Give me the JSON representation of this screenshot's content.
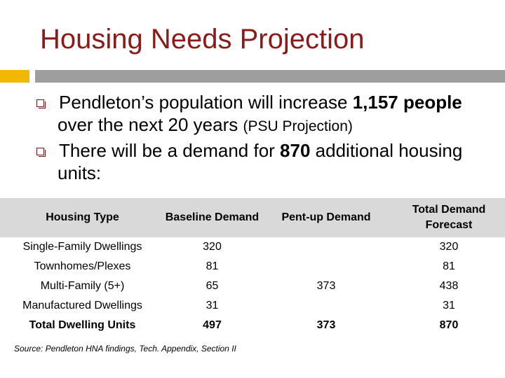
{
  "slide": {
    "title": "Housing Needs Projection",
    "colors": {
      "title": "#8B1A1A",
      "accent": "#F2B705",
      "rule": "#9E9E9E",
      "header_fill": "#D9D9D9"
    }
  },
  "bullets": [
    {
      "icon": "square-bullet-icon",
      "parts": [
        {
          "text": "Pendleton’s population will increase ",
          "bold": false
        },
        {
          "text": "1,157 people",
          "bold": true
        },
        {
          "text": " over the next 20 years ",
          "bold": false
        },
        {
          "text": "(PSU Projection)",
          "bold": false,
          "small": true
        }
      ]
    },
    {
      "icon": "square-bullet-icon",
      "parts": [
        {
          "text": "There will be a demand for ",
          "bold": false
        },
        {
          "text": "870",
          "bold": true
        },
        {
          "text": " additional housing units:",
          "bold": false
        }
      ]
    }
  ],
  "table": {
    "headers": [
      "Housing Type",
      "Baseline Demand",
      "Pent-up Demand",
      "Total Demand Forecast"
    ],
    "rows": [
      {
        "type": "Single-Family Dwellings",
        "baseline": "320",
        "pentup": "",
        "total": "320"
      },
      {
        "type": "Townhomes/Plexes",
        "baseline": "81",
        "pentup": "",
        "total": "81"
      },
      {
        "type": "Multi-Family (5+)",
        "baseline": "65",
        "pentup": "373",
        "total": "438"
      },
      {
        "type": "Manufactured Dwellings",
        "baseline": "31",
        "pentup": "",
        "total": "31"
      }
    ],
    "total_row": {
      "type": "Total Dwelling Units",
      "baseline": "497",
      "pentup": "373",
      "total": "870"
    }
  },
  "source": "Source: Pendleton HNA findings, Tech. Appendix, Section II"
}
